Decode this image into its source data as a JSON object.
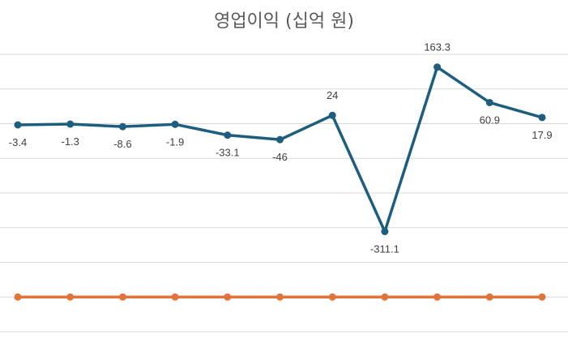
{
  "chart_data": {
    "type": "line",
    "title": "영업이익 (십억 원)",
    "xlabel": "",
    "ylabel": "",
    "ylim": [
      -600,
      200
    ],
    "y_gridline_step": 100,
    "grid": true,
    "legend": "none",
    "categories_count": 11,
    "series": [
      {
        "color": "#1d5e7e",
        "values": [
          -3.4,
          -1.3,
          -8.6,
          -1.9,
          -33.1,
          -46,
          24,
          -311.1,
          163.3,
          60.9,
          17.9
        ],
        "labels": [
          "-3.4",
          "-1.3",
          "-8.6",
          "-1.9",
          "-33.1",
          "-46",
          "24",
          "-311.1",
          "163.3",
          "60.9",
          "17.9"
        ],
        "label_positions": [
          "below",
          "below",
          "below",
          "below",
          "below",
          "below",
          "above",
          "below",
          "above",
          "below",
          "below"
        ]
      },
      {
        "color": "#e2733a",
        "values": [
          -500,
          -500,
          -500,
          -500,
          -500,
          -500,
          -500,
          -500,
          -500,
          -500,
          -500
        ]
      }
    ]
  }
}
